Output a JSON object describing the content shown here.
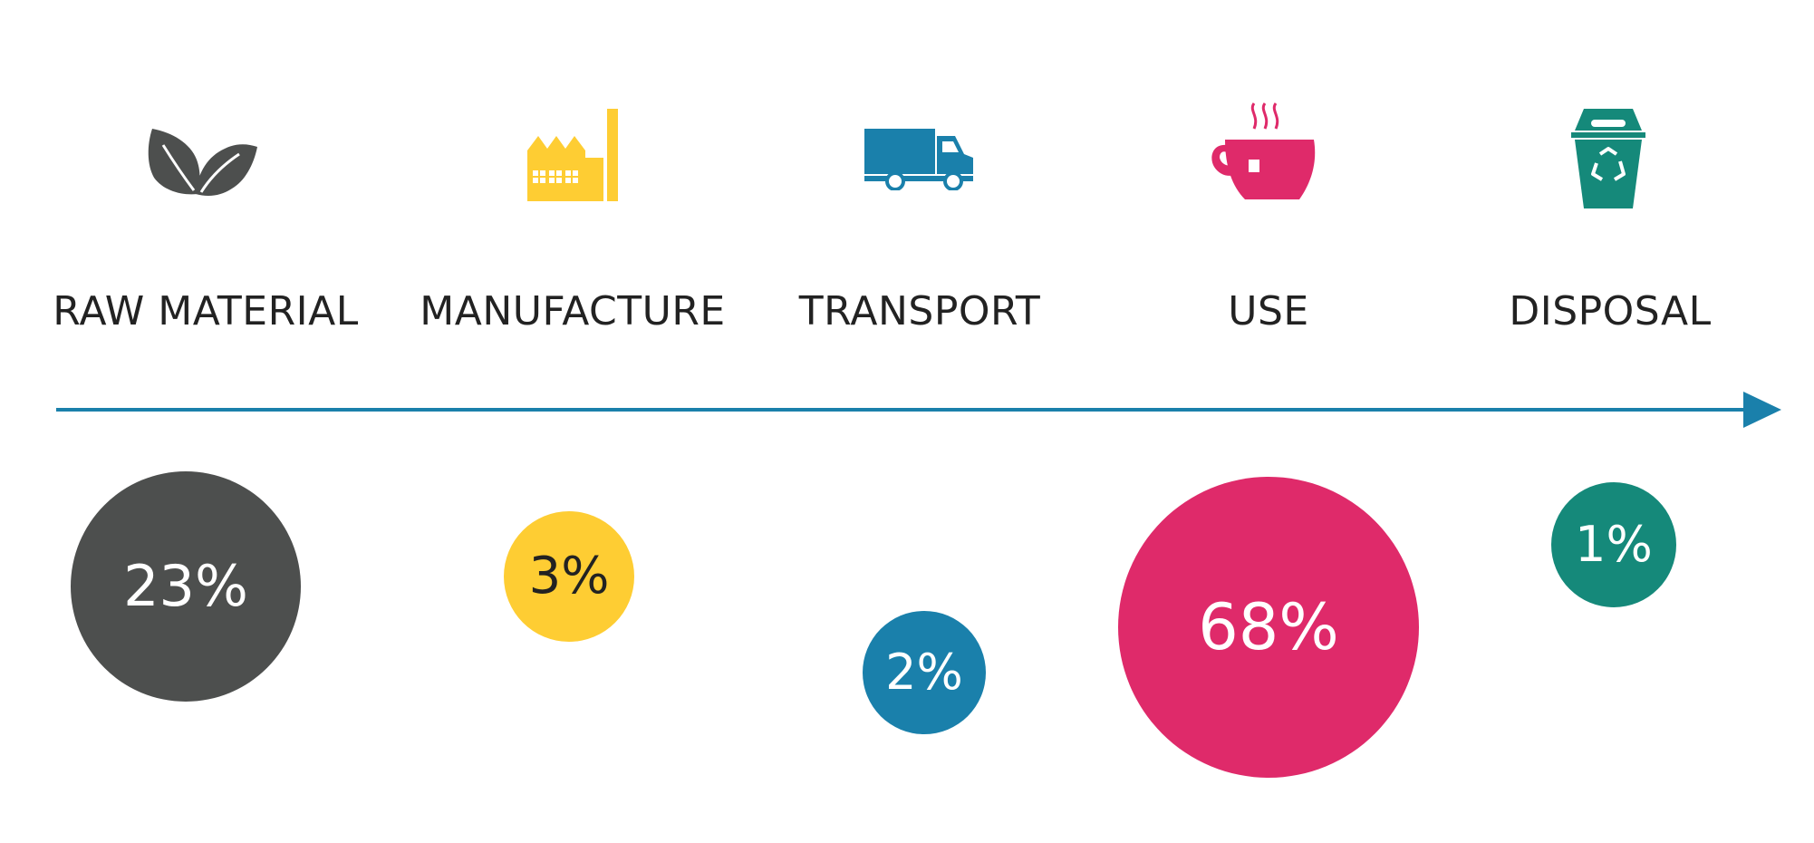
{
  "stages": [
    {
      "key": "raw-material",
      "label": "RAW MATERIAL",
      "value": "23%",
      "share": 23,
      "icon": "leaves-icon",
      "color": "#4d4f4e",
      "text_color": "#ffffff"
    },
    {
      "key": "manufacture",
      "label": "MANUFACTURE",
      "value": "3%",
      "share": 3,
      "icon": "factory-icon",
      "color": "#fecd33",
      "text_color": "#222222"
    },
    {
      "key": "transport",
      "label": "TRANSPORT",
      "value": "2%",
      "share": 2,
      "icon": "truck-icon",
      "color": "#1a80ab",
      "text_color": "#ffffff"
    },
    {
      "key": "use",
      "label": "USE",
      "value": "68%",
      "share": 68,
      "icon": "coffee-cup-icon",
      "color": "#df2a6a",
      "text_color": "#ffffff"
    },
    {
      "key": "disposal",
      "label": "DISPOSAL",
      "value": "1%",
      "share": 1,
      "icon": "recycle-bin-icon",
      "color": "#15897a",
      "text_color": "#ffffff"
    }
  ],
  "arrow_color": "#1a80ab",
  "label_color": "#222222"
}
